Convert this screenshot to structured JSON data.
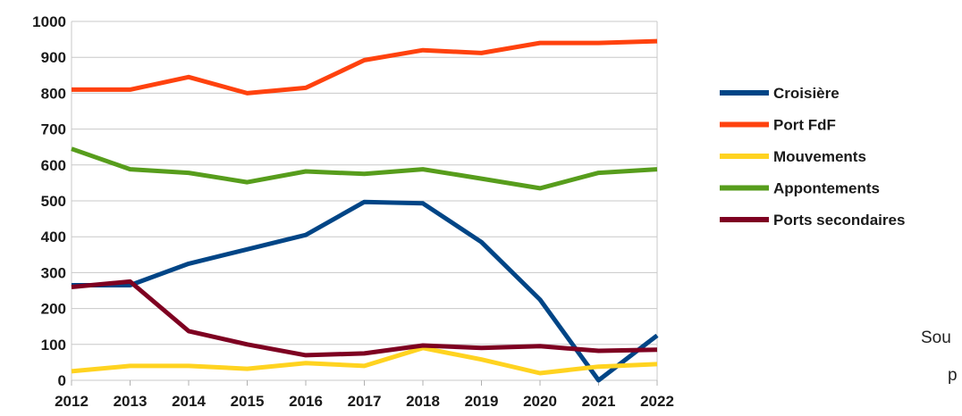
{
  "chart_data": {
    "type": "line",
    "categories": [
      "2012",
      "2013",
      "2014",
      "2015",
      "2016",
      "2017",
      "2018",
      "2019",
      "2020",
      "2021",
      "2022"
    ],
    "ylim": [
      0,
      1000
    ],
    "yticks": [
      0,
      100,
      200,
      300,
      400,
      500,
      600,
      700,
      800,
      900,
      1000
    ],
    "grid": true,
    "legend_position": "right",
    "series": [
      {
        "name": "Croisière",
        "color": "#004586",
        "values": [
          265,
          265,
          325,
          365,
          405,
          497,
          493,
          385,
          225,
          0,
          125
        ]
      },
      {
        "name": "Port FdF",
        "color": "#ff420e",
        "values": [
          810,
          810,
          845,
          800,
          815,
          892,
          920,
          912,
          940,
          940,
          945
        ]
      },
      {
        "name": "Mouvements",
        "color": "#ffd320",
        "values": [
          25,
          40,
          40,
          32,
          48,
          40,
          90,
          58,
          20,
          38,
          45
        ]
      },
      {
        "name": "Appontements",
        "color": "#579d1c",
        "values": [
          645,
          588,
          578,
          552,
          582,
          575,
          588,
          562,
          535,
          578,
          588
        ]
      },
      {
        "name": "Ports secondaires",
        "color": "#7e0021",
        "values": [
          260,
          275,
          137,
          100,
          70,
          75,
          97,
          90,
          95,
          82,
          85
        ]
      }
    ]
  },
  "annotations": [
    "Sou",
    "p"
  ]
}
